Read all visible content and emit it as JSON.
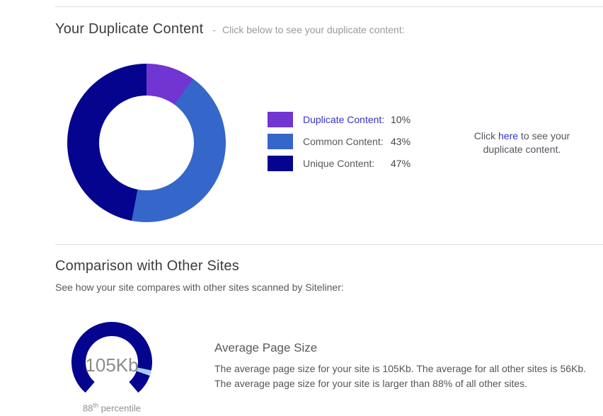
{
  "section_duplicate": {
    "title": "Your Duplicate Content",
    "separator": "-",
    "subtitle": "Click below to see your duplicate content:",
    "legend": [
      {
        "label": "Duplicate Content:",
        "value": "10%"
      },
      {
        "label": "Common Content:",
        "value": "43%"
      },
      {
        "label": "Unique Content:",
        "value": "47%"
      }
    ],
    "side_note": {
      "pre": "Click ",
      "link": "here",
      "post": " to see your duplicate content."
    }
  },
  "section_compare": {
    "title": "Comparison with Other Sites",
    "subtitle": "See how your site compares with other sites scanned by Siteliner:",
    "metric": {
      "heading": "Average Page Size",
      "gauge_value": "105Kb",
      "percentile_num": "88",
      "percentile_sup": "th",
      "percentile_word": " percentile",
      "line1": "The average page size for your site is 105Kb. The average for all other sites is 56Kb.",
      "line2": "The average page size for your site is larger than 88% of all other sites."
    }
  },
  "chart_data": [
    {
      "type": "pie",
      "subtype": "donut",
      "title": "Your Duplicate Content",
      "labels": [
        "Duplicate Content",
        "Common Content",
        "Unique Content"
      ],
      "values": [
        10,
        43,
        47
      ],
      "unit": "%",
      "colors": [
        "#7135d1",
        "#3567ca",
        "#04048f"
      ],
      "start_angle_deg": 0,
      "direction": "clockwise",
      "hole_ratio": 0.6,
      "legend_position": "right"
    },
    {
      "type": "gauge",
      "title": "Average Page Size",
      "value_label": "105Kb",
      "site_value_kb": 105,
      "other_sites_avg_kb": 56,
      "percentile": 88,
      "caption": "88th percentile",
      "arc_sweep_deg": 278,
      "marker_width_deg": 8,
      "track_color": "#04048f",
      "marker_color": "#a6ccf5"
    }
  ]
}
